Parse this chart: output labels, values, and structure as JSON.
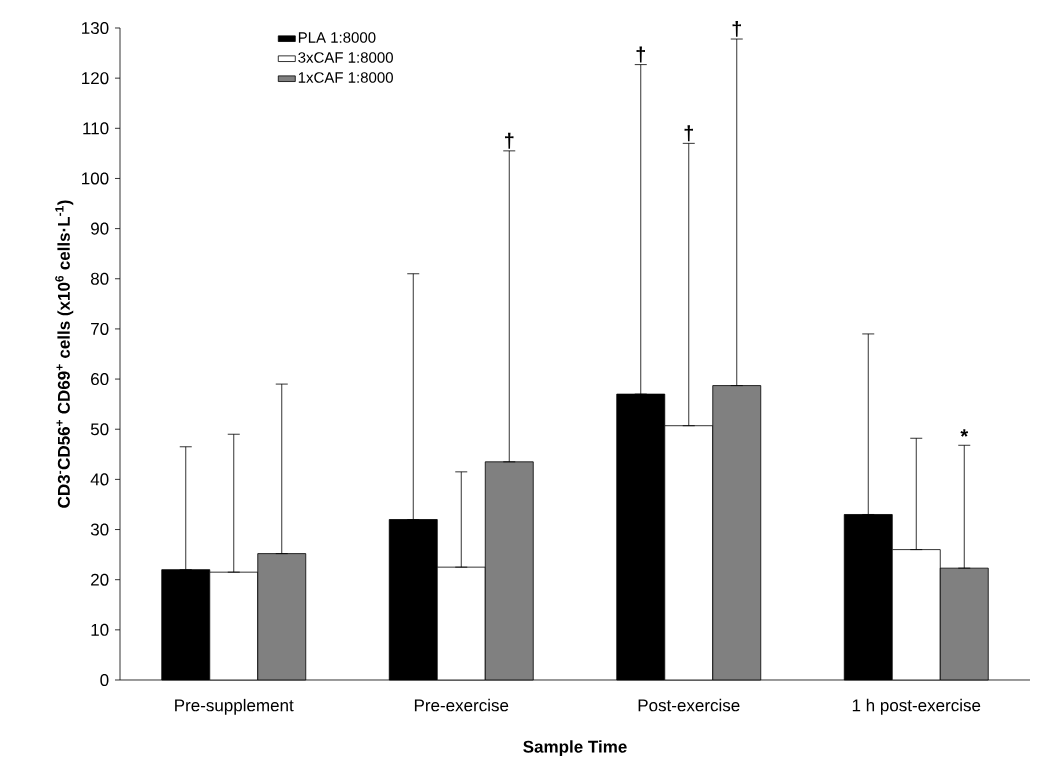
{
  "chart_data": {
    "type": "bar",
    "ylabel": "CD3$^{-}$CD56$^{+}$ CD69$^{+}$ cells (x10$^{6}$ cells·L$^{-1}$)",
    "xlabel": "Sample Time",
    "categories": [
      "Pre-supplement",
      "Pre-exercise",
      "Post-exercise",
      "1 h post-exercise"
    ],
    "series": [
      {
        "name": "PLA 1:8000",
        "color": "#000000",
        "values": [
          22,
          32,
          57,
          33
        ],
        "errors": [
          [
            22,
            46.5
          ],
          [
            32,
            81
          ],
          [
            57,
            122.7
          ],
          [
            33,
            69
          ]
        ]
      },
      {
        "name": "3xCAF 1:8000",
        "color": "#ffffff",
        "values": [
          21.5,
          22.5,
          50.7,
          26
        ],
        "errors": [
          [
            21.5,
            49
          ],
          [
            22.5,
            41.5
          ],
          [
            50.7,
            107
          ],
          [
            26,
            48.2
          ]
        ]
      },
      {
        "name": "1xCAF 1:8000",
        "color": "#808080",
        "values": [
          25.2,
          43.5,
          58.7,
          22.3
        ],
        "errors": [
          [
            25.2,
            59
          ],
          [
            43.5,
            105.5
          ],
          [
            58.7,
            127.8
          ],
          [
            22.3,
            46.8
          ]
        ]
      }
    ],
    "annotations": [
      "†",
      "†",
      "†",
      "†",
      "*"
    ],
    "ylim": [
      0,
      130
    ],
    "yticks": [
      0,
      10,
      20,
      30,
      40,
      50,
      60,
      70,
      80,
      90,
      100,
      110,
      120,
      130
    ],
    "legend": "top left",
    "grid": false
  }
}
